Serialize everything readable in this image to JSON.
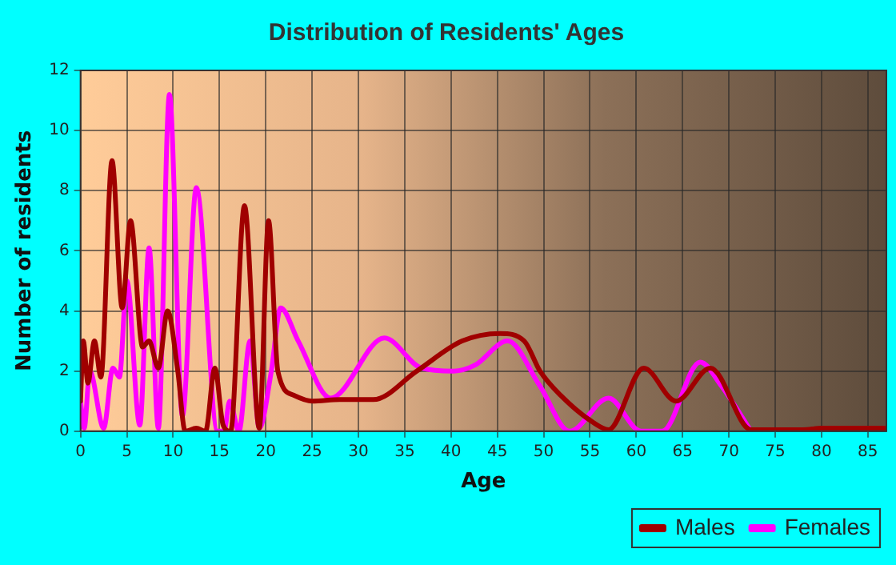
{
  "chart_data": {
    "type": "line",
    "title": "Distribution of Residents' Ages",
    "xlabel": "Age",
    "ylabel": "Number of residents",
    "xlim": [
      0,
      87
    ],
    "xticks": [
      0,
      5,
      10,
      15,
      20,
      25,
      30,
      35,
      40,
      45,
      50,
      55,
      60,
      65,
      70,
      75,
      80,
      85
    ],
    "ylim": [
      0,
      12
    ],
    "yticks": [
      0,
      2,
      4,
      6,
      8,
      10,
      12
    ],
    "grid": true,
    "legend": "bottom right",
    "marker": "none",
    "line_style": "solid",
    "series": [
      {
        "name": "Males",
        "color": "#a00000",
        "x": [
          0,
          0.3,
          0.8,
          1.5,
          2.2,
          3.4,
          4.5,
          5.4,
          6.7,
          7.4,
          8.4,
          9.4,
          10.5,
          11.3,
          12.5,
          13.5,
          14.5,
          15.4,
          16.2,
          17.7,
          19.3,
          20.3,
          21.3,
          23,
          25,
          28,
          31.6,
          36.3,
          41.2,
          45.3,
          47.9,
          49.6,
          51.8,
          55.3,
          57,
          60.8,
          64.3,
          68,
          72.4,
          78,
          80,
          87
        ],
        "values": [
          1,
          3,
          1.6,
          3,
          1.8,
          9,
          4.1,
          7,
          2.8,
          3,
          2.1,
          4,
          2,
          0,
          0.1,
          0,
          2.1,
          0.2,
          0,
          7.5,
          0.1,
          7,
          2,
          1.2,
          1,
          1.05,
          1.05,
          2,
          3,
          3.25,
          3,
          2,
          1.2,
          0.3,
          0.05,
          2.1,
          1,
          2.1,
          0.05,
          0.05,
          0.1,
          0.1
        ]
      },
      {
        "name": "Females",
        "color": "#ff00ff",
        "x": [
          0,
          0.4,
          1,
          2.5,
          3.5,
          4.2,
          5,
          6.4,
          7.4,
          8.4,
          9.6,
          11,
          12.5,
          14.8,
          15.5,
          16.1,
          17.1,
          18.3,
          19.3,
          20.6,
          21.6,
          23.5,
          27,
          32.8,
          36.8,
          40.3,
          42.6,
          46.1,
          49.6,
          52.8,
          57,
          60.5,
          62.8,
          66.9,
          69.2,
          72.4
        ],
        "values": [
          1,
          0.1,
          2,
          0.1,
          2.1,
          1.8,
          5,
          0.2,
          6.1,
          0.1,
          11.2,
          0.5,
          8.1,
          0,
          0,
          1,
          0,
          3,
          0.1,
          2,
          4.1,
          3,
          1.1,
          3.1,
          2.1,
          2,
          2.2,
          3,
          1.5,
          0,
          1.1,
          0,
          0,
          2.3,
          1.5,
          0
        ]
      }
    ]
  }
}
